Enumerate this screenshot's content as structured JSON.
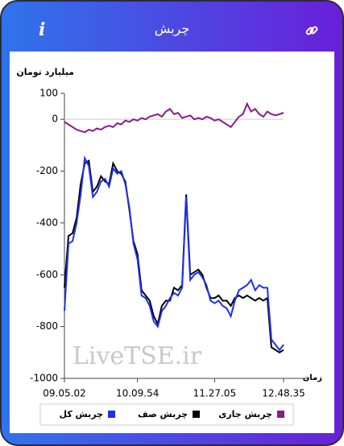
{
  "header": {
    "title": "چربش",
    "info": "i"
  },
  "chart_data": {
    "type": "line",
    "ylabel": "میلیارد تومان",
    "xlabel": "زمان",
    "watermark": "LiveTSE.ir",
    "ylim": [
      -1000,
      100
    ],
    "yticks": [
      100,
      0,
      -200,
      -400,
      -600,
      -800,
      -1000
    ],
    "xlim": [
      0,
      54
    ],
    "xticks": [
      {
        "value": 0,
        "label": "09.05.02"
      },
      {
        "value": 18,
        "label": "10.09.54"
      },
      {
        "value": 37,
        "label": "11.27.05"
      },
      {
        "value": 54,
        "label": "12.48.35"
      }
    ],
    "series": [
      {
        "name": "چربش جاری",
        "color": "#8b1a8b",
        "values": [
          -10,
          -20,
          -30,
          -40,
          -45,
          -50,
          -40,
          -45,
          -35,
          -40,
          -30,
          -25,
          -30,
          -15,
          -20,
          -5,
          -10,
          0,
          -5,
          5,
          0,
          10,
          15,
          20,
          10,
          30,
          40,
          20,
          25,
          5,
          10,
          15,
          0,
          5,
          0,
          10,
          5,
          -5,
          0,
          -10,
          -20,
          -30,
          -10,
          10,
          20,
          60,
          30,
          40,
          20,
          10,
          30,
          20,
          15,
          20,
          25
        ]
      },
      {
        "name": "چربش صف",
        "color": "#000000",
        "values": [
          -650,
          -450,
          -440,
          -380,
          -250,
          -170,
          -160,
          -280,
          -260,
          -220,
          -240,
          -250,
          -170,
          -200,
          -210,
          -240,
          -350,
          -470,
          -520,
          -660,
          -680,
          -700,
          -760,
          -790,
          -720,
          -700,
          -700,
          -650,
          -660,
          -640,
          -290,
          -600,
          -590,
          -580,
          -600,
          -650,
          -690,
          -690,
          -680,
          -700,
          -700,
          -720,
          -690,
          -680,
          -690,
          -680,
          -690,
          -700,
          -690,
          -700,
          -690,
          -880,
          -890,
          -900,
          -890
        ]
      },
      {
        "name": "چربش کل",
        "color": "#1f2ff0",
        "values": [
          -740,
          -480,
          -470,
          -400,
          -290,
          -150,
          -180,
          -300,
          -280,
          -240,
          -230,
          -260,
          -190,
          -210,
          -200,
          -250,
          -340,
          -480,
          -540,
          -680,
          -690,
          -720,
          -780,
          -800,
          -740,
          -720,
          -690,
          -670,
          -680,
          -650,
          -300,
          -620,
          -600,
          -590,
          -610,
          -640,
          -700,
          -710,
          -700,
          -720,
          -730,
          -760,
          -700,
          -660,
          -650,
          -640,
          -620,
          -660,
          -640,
          -650,
          -650,
          -850,
          -870,
          -890,
          -870
        ]
      }
    ]
  }
}
